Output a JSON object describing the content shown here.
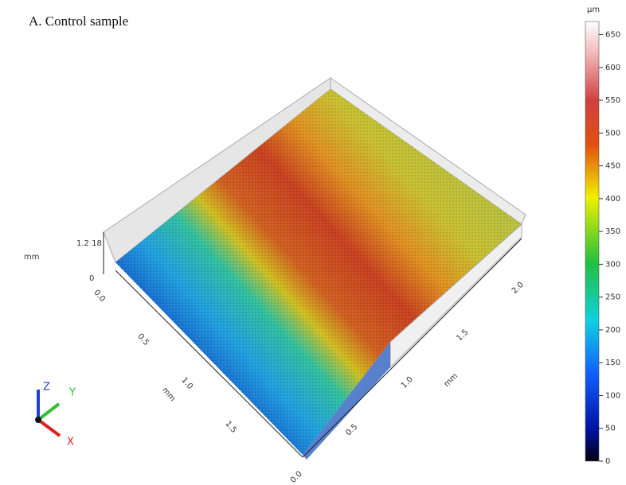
{
  "title": "A. Control sample",
  "colorbar": {
    "unit": "µm",
    "range": [
      0,
      670
    ],
    "ticks": [
      0,
      50,
      100,
      150,
      200,
      250,
      300,
      350,
      400,
      450,
      500,
      550,
      600,
      650
    ]
  },
  "surface": {
    "z_axis": {
      "label": "mm",
      "ticks": [
        "0",
        "1.2 18"
      ]
    },
    "left_axis": {
      "label": "mm",
      "ticks": [
        "0.0",
        "0.5",
        "1.0",
        "1.5"
      ]
    },
    "right_axis": {
      "label": "mm",
      "ticks": [
        "0.0",
        "0.5",
        "1.0",
        "1.5",
        "2.0"
      ]
    }
  },
  "gizmo": {
    "z": "Z",
    "y": "Y",
    "x": "X"
  }
}
